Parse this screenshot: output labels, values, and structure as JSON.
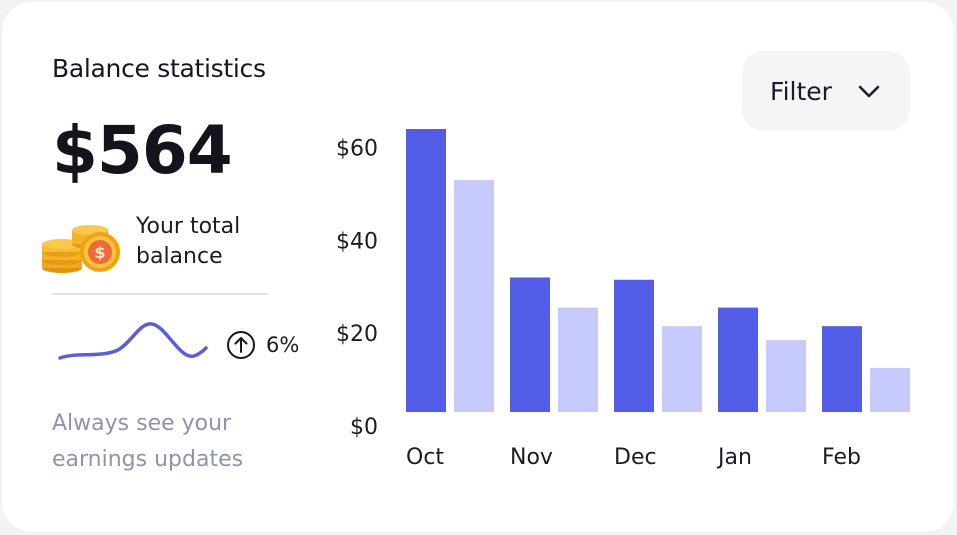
{
  "card": {
    "title": "Balance statistics",
    "amount": "$564",
    "total_label": "Your total balance",
    "trend_percent": "6%",
    "caption": "Always see your earnings updates"
  },
  "icons": {
    "coins": "coins-dollar-icon",
    "trend": "arrow-up-circle-icon",
    "filter": "chevron-down-icon"
  },
  "filter": {
    "label": "Filter"
  },
  "colors": {
    "primary_bar": "#525ce6",
    "secondary_bar": "#c7caff",
    "sparkline": "#5a5fd8",
    "caption": "#8f94a8"
  },
  "chart_data": {
    "type": "bar",
    "categories": [
      "Oct",
      "Nov",
      "Dec",
      "Jan",
      "Feb"
    ],
    "series": [
      {
        "values": [
          61,
          29,
          28.5,
          22.5,
          18.5
        ]
      },
      {
        "values": [
          50,
          22.5,
          18.5,
          15.5,
          9.5
        ]
      }
    ],
    "yticks": [
      "$0",
      "$20",
      "$40",
      "$60"
    ],
    "ytick_values": [
      0,
      20,
      40,
      60
    ],
    "ylim": [
      0,
      61
    ],
    "grid": false,
    "legend": "none"
  }
}
